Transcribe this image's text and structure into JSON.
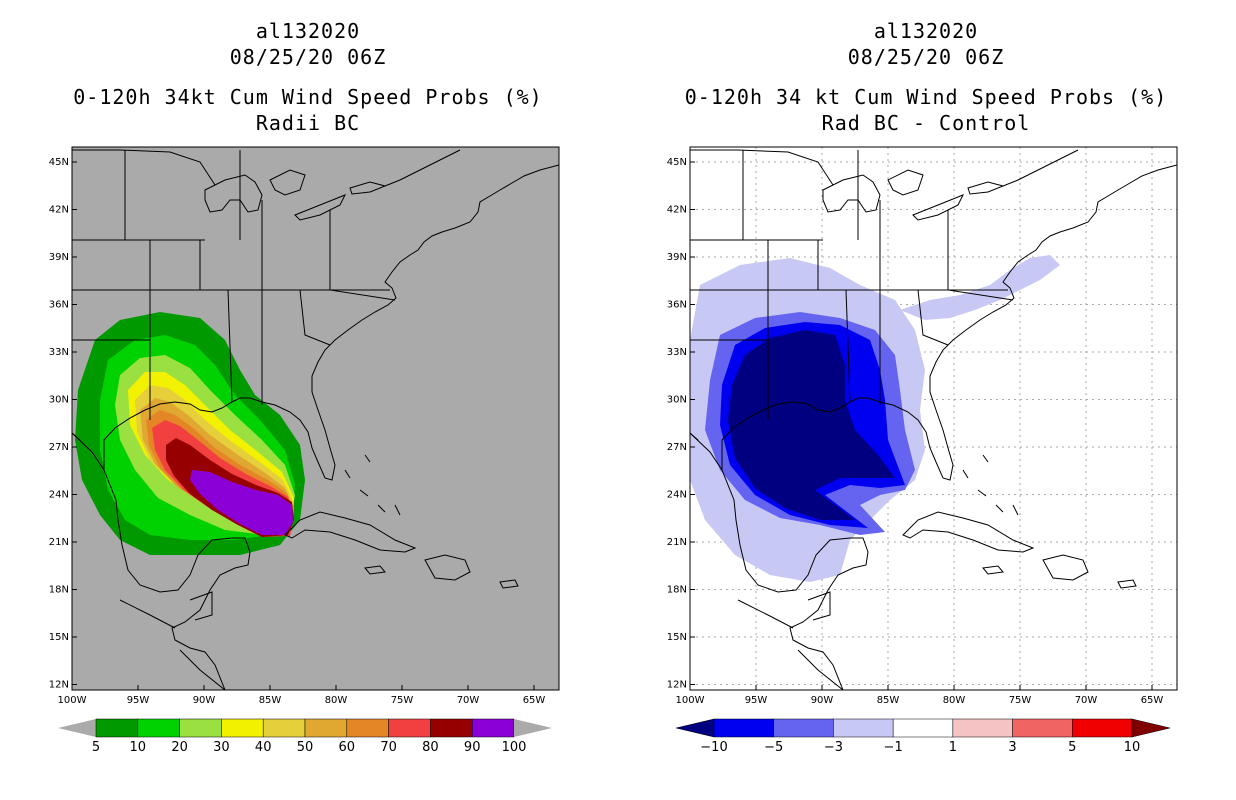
{
  "left_panel": {
    "title_line1": "al132020",
    "title_line2": "08/25/20 06Z",
    "title_line3": "0-120h 34kt Cum Wind Speed Probs (%)",
    "title_line4": "Radii BC",
    "background_color": "#aaaaaa",
    "colorbar": {
      "labels": [
        "5",
        "10",
        "20",
        "30",
        "40",
        "50",
        "60",
        "70",
        "80",
        "90",
        "100"
      ],
      "colors": [
        "#009a00",
        "#00d100",
        "#99e040",
        "#f2f200",
        "#e5cf3a",
        "#e0a830",
        "#e58626",
        "#f24040",
        "#960000",
        "#8a00d6"
      ]
    }
  },
  "right_panel": {
    "title_line1": "al132020",
    "title_line2": "08/25/20 06Z",
    "title_line3": "0-120h 34 kt Cum Wind Speed Probs (%)",
    "title_line4": "Rad BC - Control",
    "background_color": "#ffffff",
    "colorbar": {
      "labels": [
        "−10",
        "−5",
        "−3",
        "−1",
        "1",
        "3",
        "5",
        "10"
      ],
      "colors": [
        "#000080",
        "#0000f0",
        "#6464f0",
        "#c8c8f5",
        "#ffffff",
        "#f5c3c3",
        "#f06464",
        "#f00000",
        "#800000"
      ]
    }
  },
  "axes": {
    "lat_labels": [
      "45N",
      "42N",
      "39N",
      "36N",
      "33N",
      "30N",
      "27N",
      "24N",
      "21N",
      "18N",
      "15N",
      "12N"
    ],
    "lon_labels": [
      "100W",
      "95W",
      "90W",
      "85W",
      "80W",
      "75W",
      "70W",
      "65W"
    ]
  }
}
